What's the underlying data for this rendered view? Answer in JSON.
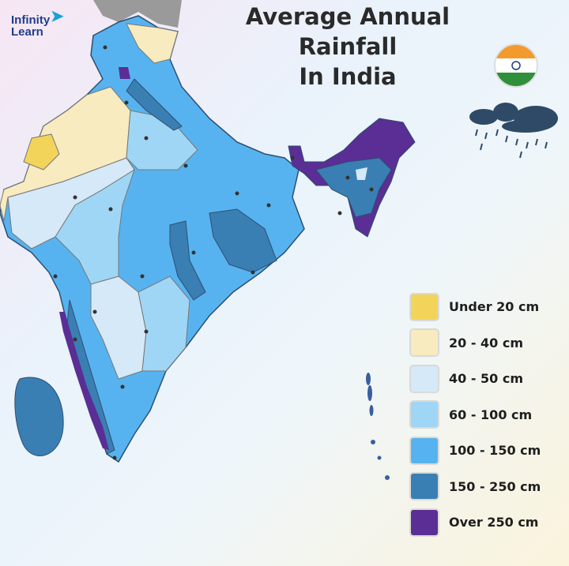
{
  "title": {
    "line1": "Average Annual Rainfall",
    "line2": "In India"
  },
  "logo": {
    "text_line1": "Infinity",
    "text_line2": "Learn"
  },
  "icons": {
    "flag": "india-flag-icon",
    "weather": "rain-cloud-icon"
  },
  "legend": [
    {
      "label": "Under 20 cm",
      "color": "#f2d45a"
    },
    {
      "label": "20 - 40 cm",
      "color": "#f7ebbf"
    },
    {
      "label": "40 - 50 cm",
      "color": "#d5e9f8"
    },
    {
      "label": "60 - 100 cm",
      "color": "#9fd6f6"
    },
    {
      "label": "100 - 150 cm",
      "color": "#57b3ef"
    },
    {
      "label": "150 - 250 cm",
      "color": "#3a7fb3"
    },
    {
      "label": "Over 250 cm",
      "color": "#5a2e94"
    }
  ]
}
